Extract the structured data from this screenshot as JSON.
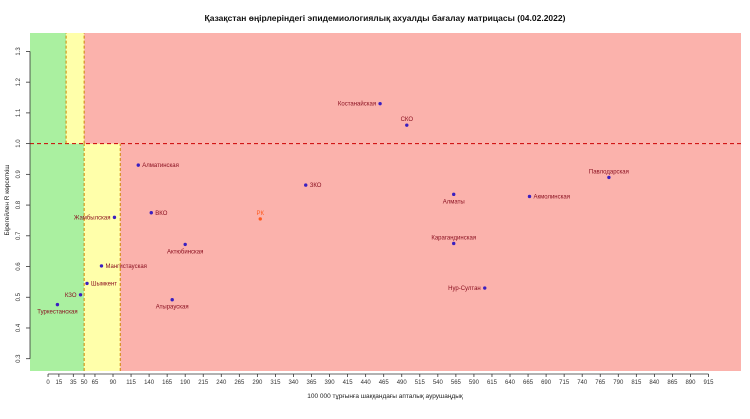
{
  "chart_data": {
    "type": "scatter",
    "title": "Қазақстан өңірлеріндегі эпидемиологиялық ахуалды бағалау матрицасы  (04.02.2022)",
    "xlabel": "100 000 тұрғынға шаққандағы апталық аурушаңдық",
    "ylabel": "Бірегейлен R көрсеткіш",
    "xlim": [
      -25,
      960
    ],
    "ylim": [
      0.26,
      1.36
    ],
    "x_ticks": [
      0,
      15,
      35,
      50,
      65,
      90,
      115,
      140,
      165,
      190,
      215,
      240,
      265,
      290,
      315,
      340,
      365,
      390,
      415,
      440,
      465,
      490,
      515,
      540,
      565,
      590,
      615,
      640,
      665,
      690,
      715,
      740,
      765,
      790,
      815,
      840,
      865,
      890,
      915
    ],
    "y_ticks": [
      0.3,
      0.4,
      0.5,
      0.6,
      0.7,
      0.8,
      0.9,
      1.0,
      1.1,
      1.2,
      1.3
    ],
    "grid": false,
    "zones": [
      {
        "zone": "green",
        "x": [
          -25,
          50
        ],
        "y": [
          0.26,
          1.0
        ],
        "color": "#aaf0a0"
      },
      {
        "zone": "green",
        "x": [
          -25,
          25
        ],
        "y": [
          1.0,
          1.36
        ],
        "color": "#aaf0a0"
      },
      {
        "zone": "yellow",
        "x": [
          50,
          100
        ],
        "y": [
          0.26,
          1.0
        ],
        "color": "#ffffaa"
      },
      {
        "zone": "yellow",
        "x": [
          25,
          50
        ],
        "y": [
          1.0,
          1.36
        ],
        "color": "#ffffaa"
      },
      {
        "zone": "red",
        "x": [
          100,
          960
        ],
        "y": [
          0.26,
          1.0
        ],
        "color": "#fbb2ac"
      },
      {
        "zone": "red",
        "x": [
          50,
          960
        ],
        "y": [
          1.0,
          1.36
        ],
        "color": "#fbb2ac"
      }
    ],
    "threshold_lines": [
      {
        "axis": "y",
        "value": 1.0,
        "color": "#cc0000"
      },
      {
        "axis": "x",
        "value": 50,
        "color": "#cc8800"
      },
      {
        "axis": "x",
        "value": 100,
        "color": "#cc8800"
      },
      {
        "axis": "x",
        "value": 25,
        "color": "#cc8800",
        "y_from": 1.0
      },
      {
        "axis": "x",
        "value": 50,
        "color": "#cc8800",
        "y_from": 1.0
      }
    ],
    "colors": {
      "point": "#3a1fc0",
      "label": "#8a1020",
      "highlight": "#ff5a1e"
    },
    "points": [
      {
        "label": "Костанайская",
        "x": 460,
        "y": 1.13,
        "anchor": "left"
      },
      {
        "label": "СКО",
        "x": 497,
        "y": 1.06,
        "anchor": "above"
      },
      {
        "label": "Павлодарская",
        "x": 777,
        "y": 0.89,
        "anchor": "above"
      },
      {
        "label": "Алматинская",
        "x": 125,
        "y": 0.93,
        "anchor": "right"
      },
      {
        "label": "ЗКО",
        "x": 357,
        "y": 0.865,
        "anchor": "right"
      },
      {
        "label": "Алматы",
        "x": 562,
        "y": 0.835,
        "anchor": "below"
      },
      {
        "label": "Акмолинская",
        "x": 667,
        "y": 0.828,
        "anchor": "right"
      },
      {
        "label": "ВКО",
        "x": 143,
        "y": 0.775,
        "anchor": "right"
      },
      {
        "label": "Жамбылская",
        "x": 92,
        "y": 0.76,
        "anchor": "left"
      },
      {
        "label": "РК",
        "x": 294,
        "y": 0.755,
        "anchor": "above",
        "highlight": true
      },
      {
        "label": "Карагандинская",
        "x": 562,
        "y": 0.675,
        "anchor": "above"
      },
      {
        "label": "Актюбинская",
        "x": 190,
        "y": 0.672,
        "anchor": "below"
      },
      {
        "label": "Мангистауская",
        "x": 74,
        "y": 0.602,
        "anchor": "right"
      },
      {
        "label": "Шымкент",
        "x": 54,
        "y": 0.545,
        "anchor": "right"
      },
      {
        "label": "Нур-Султан",
        "x": 605,
        "y": 0.53,
        "anchor": "left"
      },
      {
        "label": "КЗО",
        "x": 45,
        "y": 0.508,
        "anchor": "left"
      },
      {
        "label": "Атырауская",
        "x": 172,
        "y": 0.492,
        "anchor": "below"
      },
      {
        "label": "Туркестанская",
        "x": 13,
        "y": 0.476,
        "anchor": "below"
      }
    ]
  }
}
